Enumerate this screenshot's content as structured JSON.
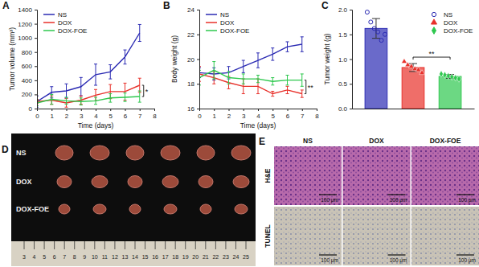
{
  "chart_data": [
    {
      "type": "line",
      "title": "A",
      "xlabel": "Time (days)",
      "ylabel": "Tumor volume (mm³)",
      "x": [
        0,
        1,
        2,
        3,
        4,
        5,
        6,
        7
      ],
      "xlim": [
        0,
        8
      ],
      "xticks": [
        0,
        1,
        2,
        3,
        4,
        5,
        6,
        7,
        8
      ],
      "ylim": [
        0,
        1400
      ],
      "yticks": [
        0,
        200,
        400,
        600,
        800,
        1000,
        1200,
        1400
      ],
      "grid": false,
      "legend": "upper left",
      "series": [
        {
          "name": "NS",
          "color": "#2b2bb3",
          "values": [
            100,
            230,
            250,
            310,
            480,
            520,
            730,
            1070
          ],
          "errors": [
            80,
            80,
            100,
            130,
            150,
            100,
            100,
            120
          ]
        },
        {
          "name": "DOX",
          "color": "#e8302a",
          "values": [
            100,
            120,
            80,
            120,
            190,
            240,
            240,
            330
          ],
          "errors": [
            30,
            60,
            60,
            60,
            80,
            100,
            120,
            100
          ]
        },
        {
          "name": "DOX-FOE",
          "color": "#2ec84e",
          "values": [
            80,
            130,
            110,
            100,
            110,
            150,
            160,
            170
          ],
          "errors": [
            40,
            70,
            50,
            50,
            50,
            60,
            60,
            80
          ]
        }
      ],
      "annotations": [
        {
          "text": "*",
          "between": [
            "DOX",
            "DOX-FOE"
          ]
        }
      ]
    },
    {
      "type": "line",
      "title": "B",
      "xlabel": "Time (days)",
      "ylabel": "Body weight (g)",
      "x": [
        0,
        1,
        2,
        3,
        4,
        5,
        6,
        7
      ],
      "xlim": [
        0,
        8
      ],
      "xticks": [
        0,
        1,
        2,
        3,
        4,
        5,
        6,
        7,
        8
      ],
      "ylim": [
        16,
        24
      ],
      "yticks": [
        16,
        18,
        20,
        22,
        24
      ],
      "grid": false,
      "legend": "upper left",
      "series": [
        {
          "name": "NS",
          "color": "#2b2bb3",
          "values": [
            18.9,
            18.8,
            18.9,
            19.4,
            19.9,
            20.4,
            21.0,
            21.2
          ],
          "errors": [
            0.4,
            0.5,
            0.5,
            0.5,
            0.6,
            0.5,
            0.4,
            0.6
          ]
        },
        {
          "name": "DOX",
          "color": "#e8302a",
          "values": [
            18.8,
            18.5,
            18.1,
            17.8,
            17.8,
            17.2,
            17.5,
            17.2
          ],
          "errors": [
            0.6,
            0.5,
            0.5,
            0.6,
            0.6,
            0.2,
            0.3,
            0.3
          ]
        },
        {
          "name": "DOX-FOE",
          "color": "#2ec84e",
          "values": [
            18.5,
            19.1,
            18.5,
            18.4,
            18.4,
            18.2,
            18.3,
            18.3
          ],
          "errors": [
            0.6,
            0.7,
            0.5,
            0.4,
            0.3,
            0.3,
            0.4,
            0.5
          ]
        }
      ],
      "annotations": [
        {
          "text": "**",
          "between": [
            "DOX",
            "DOX-FOE"
          ]
        }
      ]
    },
    {
      "type": "bar",
      "title": "C",
      "ylabel": "Tumor weight (g)",
      "categories": [
        null,
        null,
        null
      ],
      "ylim": [
        0,
        2
      ],
      "yticks": [
        {
          "value": 0,
          "label": "0.0"
        },
        0.5,
        {
          "value": 1,
          "label": "1.0"
        },
        1.5,
        {
          "value": 2,
          "label": "2.0"
        }
      ],
      "grid": false,
      "legend": "upper right",
      "tick_labels": "y",
      "series": [
        {
          "name": "NS",
          "color": "#2b2bb3",
          "marker": "circle-open",
          "values": [
            1.62,
            null,
            null
          ],
          "errors": [
            0.2,
            null,
            null
          ],
          "points": [
            [
              1.95,
              1.75,
              1.62,
              1.55,
              1.38,
              1.5
            ],
            null,
            null
          ]
        },
        {
          "name": "DOX",
          "color": "#e8302a",
          "marker": "triangle",
          "values": [
            null,
            0.83,
            null
          ],
          "errors": [
            null,
            0.08,
            null
          ],
          "points": [
            null,
            [
              0.95,
              0.88,
              0.85,
              0.8,
              0.78,
              0.72
            ],
            null
          ]
        },
        {
          "name": "DOX-FOE",
          "color": "#2ec84e",
          "marker": "diamond",
          "values": [
            null,
            null,
            0.65
          ],
          "errors": [
            null,
            null,
            0.04
          ],
          "points": [
            null,
            null,
            [
              0.7,
              0.68,
              0.66,
              0.64,
              0.62,
              0.6
            ]
          ]
        }
      ],
      "annotations": [
        {
          "text": "**",
          "between": [
            "DOX",
            "DOX-FOE"
          ]
        }
      ]
    }
  ],
  "photo_panels": [
    {
      "title": "D",
      "row_labels": [
        "NS",
        "DOX",
        "DOX-FOE"
      ],
      "ruler_labels": [
        3,
        4,
        5,
        6,
        7,
        8,
        9,
        10,
        11,
        12,
        13,
        14,
        15,
        16,
        17,
        18,
        19,
        20,
        21,
        22,
        23,
        24,
        25
      ]
    },
    {
      "title": "E",
      "column_labels": [
        "NS",
        "DOX",
        "DOX-FOE"
      ],
      "row_labels": [
        "H&E",
        "TUNEL"
      ],
      "scale_bar": "100 μm"
    }
  ]
}
